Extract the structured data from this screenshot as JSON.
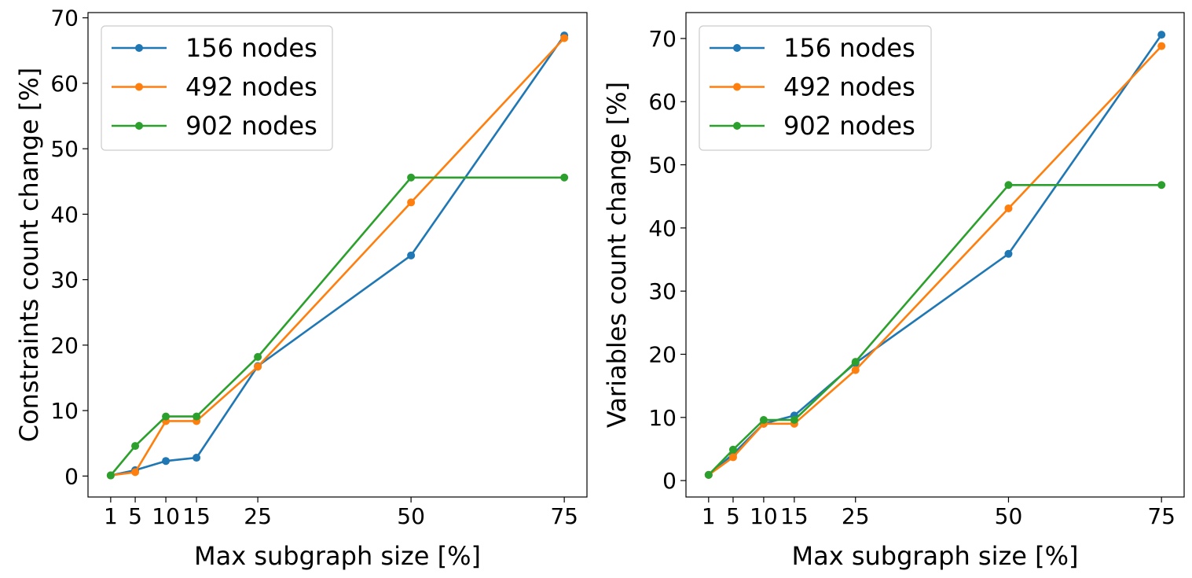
{
  "figure": {
    "background": "#ffffff"
  },
  "chart_data": [
    {
      "type": "line",
      "title": "",
      "xlabel": "Max subgraph size [%]",
      "ylabel": "Constraints count change [%]",
      "x": [
        1,
        5,
        10,
        15,
        25,
        50,
        75
      ],
      "x_ticks": [
        1,
        5,
        10,
        15,
        25,
        50,
        75
      ],
      "x_tick_labels": [
        "1",
        "5",
        "10",
        "15",
        "25",
        "50",
        "75"
      ],
      "y_ticks": [
        0,
        10,
        20,
        30,
        40,
        50,
        60,
        70
      ],
      "y_tick_labels": [
        "0",
        "10",
        "20",
        "30",
        "40",
        "50",
        "60",
        "70"
      ],
      "xlim": [
        -2.7,
        78.7
      ],
      "ylim": [
        -3.2,
        70.8
      ],
      "grid": false,
      "legend_position": "top-left",
      "series": [
        {
          "name": "156 nodes",
          "color": "#1f77b4",
          "values": [
            0.1,
            0.9,
            2.3,
            2.8,
            16.8,
            33.7,
            67.3
          ]
        },
        {
          "name": "492 nodes",
          "color": "#ff7f0e",
          "values": [
            0.1,
            0.6,
            8.4,
            8.4,
            16.7,
            41.8,
            66.9
          ]
        },
        {
          "name": "902 nodes",
          "color": "#2ca02c",
          "values": [
            0.1,
            4.6,
            9.1,
            9.1,
            18.2,
            45.6,
            45.6
          ]
        }
      ]
    },
    {
      "type": "line",
      "title": "",
      "xlabel": "Max subgraph size [%]",
      "ylabel": "Variables count change [%]",
      "x": [
        1,
        5,
        10,
        15,
        25,
        50,
        75
      ],
      "x_ticks": [
        1,
        5,
        10,
        15,
        25,
        50,
        75
      ],
      "x_tick_labels": [
        "1",
        "5",
        "10",
        "15",
        "25",
        "50",
        "75"
      ],
      "y_ticks": [
        0,
        10,
        20,
        30,
        40,
        50,
        60,
        70
      ],
      "y_tick_labels": [
        "0",
        "10",
        "20",
        "30",
        "40",
        "50",
        "60",
        "70"
      ],
      "xlim": [
        -2.7,
        78.7
      ],
      "ylim": [
        -2.6,
        74.1
      ],
      "grid": false,
      "legend_position": "top-left",
      "series": [
        {
          "name": "156 nodes",
          "color": "#1f77b4",
          "values": [
            0.9,
            4.2,
            9.0,
            10.3,
            18.6,
            35.9,
            70.6
          ]
        },
        {
          "name": "492 nodes",
          "color": "#ff7f0e",
          "values": [
            0.9,
            3.7,
            9.0,
            9.0,
            17.5,
            43.1,
            68.8
          ]
        },
        {
          "name": "902 nodes",
          "color": "#2ca02c",
          "values": [
            0.9,
            4.9,
            9.6,
            9.6,
            18.8,
            46.8,
            46.8
          ]
        }
      ]
    }
  ]
}
